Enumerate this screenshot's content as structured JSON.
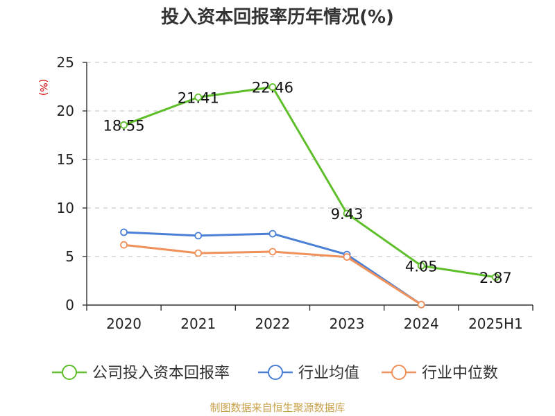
{
  "title": "投入资本回报率历年情况(%)",
  "unit_label": "(%)",
  "source_note": "制图数据来自恒生聚源数据库",
  "colors": {
    "company": "#5fbf2a",
    "industry_avg": "#4a7fd6",
    "industry_median": "#f0905a",
    "axis": "#333333",
    "grid": "#bbbbbb"
  },
  "chart_data": {
    "type": "line",
    "title": "投入资本回报率历年情况(%)",
    "ylabel": "(%)",
    "xlabel": "",
    "categories": [
      "2020",
      "2021",
      "2022",
      "2023",
      "2024",
      "2025H1"
    ],
    "ylim": [
      0,
      25
    ],
    "yticks": [
      0,
      5,
      10,
      15,
      20,
      25
    ],
    "grid": true,
    "legend_position": "bottom",
    "series": [
      {
        "name": "公司投入资本回报率",
        "key": "company",
        "values": [
          18.55,
          21.41,
          22.46,
          9.43,
          4.05,
          2.87
        ],
        "labels": [
          "18.55",
          "21.41",
          "22.46",
          "9.43",
          "4.05",
          "2.87"
        ],
        "show_labels": true
      },
      {
        "name": "行业均值",
        "key": "industry_avg",
        "values": [
          7.5,
          7.15,
          7.35,
          5.2,
          0.05,
          null
        ],
        "show_labels": false
      },
      {
        "name": "行业中位数",
        "key": "industry_median",
        "values": [
          6.2,
          5.35,
          5.5,
          4.95,
          0.05,
          null
        ],
        "show_labels": false
      }
    ]
  }
}
